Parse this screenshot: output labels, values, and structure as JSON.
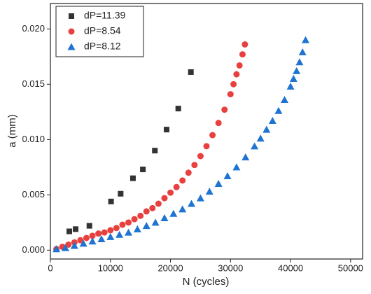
{
  "chart_data": {
    "type": "scatter",
    "xlabel": "N (cycles)",
    "ylabel": "a (mm)",
    "xlim": [
      0,
      52000
    ],
    "ylim": [
      -0.0008,
      0.0223
    ],
    "xticks": [
      0,
      10000,
      20000,
      30000,
      40000,
      50000
    ],
    "yticks": [
      {
        "value": 0,
        "label": "0.000"
      },
      {
        "value": 0.005,
        "label": "0.005"
      },
      {
        "value": 0.01,
        "label": "0.010"
      },
      {
        "value": 0.015,
        "label": "0.015"
      },
      {
        "value": 0.02,
        "label": "0.020"
      }
    ],
    "legend": "upper left",
    "series": [
      {
        "name": "dP=11.39",
        "color": "#333333",
        "marker": "square",
        "x": [
          3150,
          4200,
          6500,
          10100,
          11700,
          13750,
          15400,
          17400,
          19350,
          21300,
          23400
        ],
        "values": [
          0.0017,
          0.0019,
          0.0022,
          0.0044,
          0.0051,
          0.0065,
          0.0073,
          0.009,
          0.0109,
          0.0128,
          0.0161
        ]
      },
      {
        "name": "dP=8.54",
        "color": "#e8403e",
        "marker": "circle",
        "x": [
          1000,
          2000,
          3000,
          4000,
          5000,
          6000,
          7000,
          8000,
          9000,
          10000,
          11000,
          12000,
          13000,
          14000,
          15000,
          16000,
          17000,
          18000,
          19000,
          20000,
          21000,
          22000,
          23000,
          24000,
          25000,
          26000,
          27000,
          28000,
          29000,
          30000,
          30500,
          31000,
          31500,
          32000,
          32400
        ],
        "values": [
          0.0001,
          0.0003,
          0.0005,
          0.0007,
          0.0009,
          0.0011,
          0.0013,
          0.0015,
          0.0016,
          0.0018,
          0.002,
          0.0023,
          0.0025,
          0.0028,
          0.0031,
          0.0035,
          0.0038,
          0.0042,
          0.0047,
          0.0052,
          0.0057,
          0.0063,
          0.007,
          0.0077,
          0.0085,
          0.0094,
          0.0104,
          0.0115,
          0.0127,
          0.0141,
          0.015,
          0.0159,
          0.0167,
          0.0177,
          0.0186
        ]
      },
      {
        "name": "dP=8.12",
        "color": "#1f74d1",
        "marker": "triangle",
        "x": [
          1000,
          2500,
          4000,
          5500,
          7000,
          8500,
          10000,
          11500,
          13000,
          14500,
          16000,
          17500,
          19000,
          20500,
          22000,
          23500,
          25000,
          26500,
          28000,
          29500,
          31000,
          32500,
          34000,
          35000,
          36000,
          37000,
          38000,
          39000,
          40000,
          40500,
          41000,
          41500,
          42000,
          42500
        ],
        "values": [
          0.0001,
          0.0002,
          0.0004,
          0.0006,
          0.0008,
          0.001,
          0.0012,
          0.0014,
          0.0016,
          0.0019,
          0.0022,
          0.0025,
          0.0029,
          0.0033,
          0.0037,
          0.0042,
          0.0047,
          0.0053,
          0.006,
          0.0067,
          0.0075,
          0.0084,
          0.0094,
          0.0101,
          0.0109,
          0.0117,
          0.0126,
          0.0136,
          0.0148,
          0.0155,
          0.0162,
          0.017,
          0.0179,
          0.019
        ]
      }
    ]
  }
}
